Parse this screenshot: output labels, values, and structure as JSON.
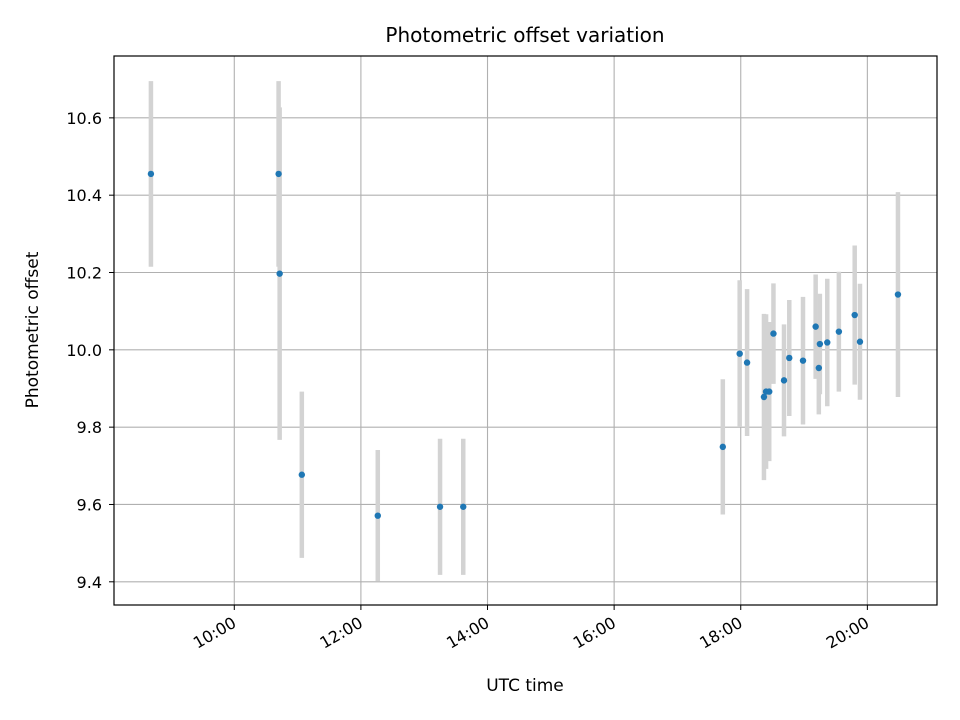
{
  "chart_data": {
    "type": "scatter",
    "title": "Photometric offset variation",
    "xlabel": "UTC time",
    "ylabel": "Photometric offset",
    "x_type": "time",
    "xlim": [
      "08:06",
      "21:06"
    ],
    "ylim": [
      9.34,
      10.76
    ],
    "xticks": [
      "10:00",
      "12:00",
      "14:00",
      "16:00",
      "18:00",
      "20:00"
    ],
    "yticks": [
      "9.4",
      "9.6",
      "9.8",
      "10.0",
      "10.2",
      "10.4",
      "10.6"
    ],
    "grid": true,
    "x_tick_rotation_deg": 30,
    "colors": {
      "point": "#1f77b4",
      "errorbar": "#d3d3d3",
      "grid": "#b0b0b0",
      "axes": "#000000"
    },
    "points": [
      {
        "x": "08:41",
        "y": 10.455,
        "yerr": 0.24
      },
      {
        "x": "10:42",
        "y": 10.455,
        "yerr": 0.24
      },
      {
        "x": "10:43",
        "y": 10.197,
        "yerr": 0.43
      },
      {
        "x": "11:04",
        "y": 9.677,
        "yerr": 0.215
      },
      {
        "x": "12:16",
        "y": 9.571,
        "yerr": 0.17
      },
      {
        "x": "13:15",
        "y": 9.594,
        "yerr": 0.176
      },
      {
        "x": "13:37",
        "y": 9.594,
        "yerr": 0.176
      },
      {
        "x": "17:43",
        "y": 9.749,
        "yerr": 0.175
      },
      {
        "x": "17:59",
        "y": 9.99,
        "yerr": 0.19
      },
      {
        "x": "18:06",
        "y": 9.967,
        "yerr": 0.19
      },
      {
        "x": "18:22",
        "y": 9.878,
        "yerr": 0.215
      },
      {
        "x": "18:24",
        "y": 9.892,
        "yerr": 0.2
      },
      {
        "x": "18:27",
        "y": 9.892,
        "yerr": 0.18
      },
      {
        "x": "18:31",
        "y": 10.042,
        "yerr": 0.13
      },
      {
        "x": "18:41",
        "y": 9.921,
        "yerr": 0.145
      },
      {
        "x": "18:46",
        "y": 9.979,
        "yerr": 0.15
      },
      {
        "x": "18:59",
        "y": 9.972,
        "yerr": 0.165
      },
      {
        "x": "19:11",
        "y": 10.06,
        "yerr": 0.135
      },
      {
        "x": "19:14",
        "y": 9.953,
        "yerr": 0.12
      },
      {
        "x": "19:15",
        "y": 10.015,
        "yerr": 0.13
      },
      {
        "x": "19:22",
        "y": 10.019,
        "yerr": 0.165
      },
      {
        "x": "19:33",
        "y": 10.047,
        "yerr": 0.155
      },
      {
        "x": "19:48",
        "y": 10.09,
        "yerr": 0.18
      },
      {
        "x": "19:53",
        "y": 10.021,
        "yerr": 0.15
      },
      {
        "x": "20:29",
        "y": 10.143,
        "yerr": 0.265
      }
    ]
  }
}
